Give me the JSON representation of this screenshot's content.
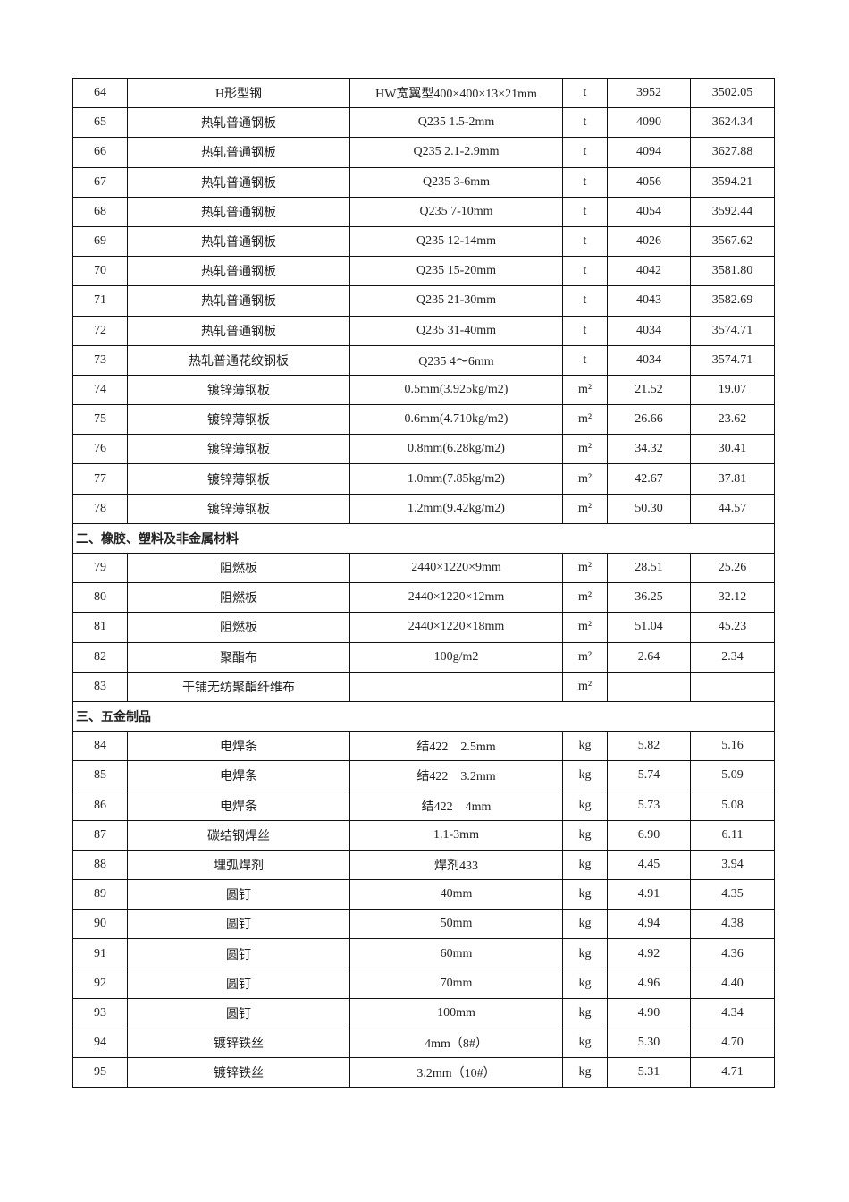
{
  "rows": [
    {
      "no": "64",
      "name": "H形型钢",
      "spec": "HW宽翼型400×400×13×21mm",
      "unit": "t",
      "price_tax": "3952",
      "price_notax": "3502.05"
    },
    {
      "no": "65",
      "name": "热轧普通钢板",
      "spec": "Q235 1.5-2mm",
      "unit": "t",
      "price_tax": "4090",
      "price_notax": "3624.34"
    },
    {
      "no": "66",
      "name": "热轧普通钢板",
      "spec": "Q235 2.1-2.9mm",
      "unit": "t",
      "price_tax": "4094",
      "price_notax": "3627.88"
    },
    {
      "no": "67",
      "name": "热轧普通钢板",
      "spec": "Q235 3-6mm",
      "unit": "t",
      "price_tax": "4056",
      "price_notax": "3594.21"
    },
    {
      "no": "68",
      "name": "热轧普通钢板",
      "spec": "Q235 7-10mm",
      "unit": "t",
      "price_tax": "4054",
      "price_notax": "3592.44"
    },
    {
      "no": "69",
      "name": "热轧普通钢板",
      "spec": "Q235 12-14mm",
      "unit": "t",
      "price_tax": "4026",
      "price_notax": "3567.62"
    },
    {
      "no": "70",
      "name": "热轧普通钢板",
      "spec": "Q235 15-20mm",
      "unit": "t",
      "price_tax": "4042",
      "price_notax": "3581.80"
    },
    {
      "no": "71",
      "name": "热轧普通钢板",
      "spec": "Q235 21-30mm",
      "unit": "t",
      "price_tax": "4043",
      "price_notax": "3582.69"
    },
    {
      "no": "72",
      "name": "热轧普通钢板",
      "spec": "Q235 31-40mm",
      "unit": "t",
      "price_tax": "4034",
      "price_notax": "3574.71"
    },
    {
      "no": "73",
      "name": "热轧普通花纹钢板",
      "spec": "Q235 4～6mm",
      "unit": "t",
      "price_tax": "4034",
      "price_notax": "3574.71"
    },
    {
      "no": "74",
      "name": "镀锌薄钢板",
      "spec": "0.5mm(3.925kg/m2)",
      "unit": "m²",
      "price_tax": "21.52",
      "price_notax": "19.07"
    },
    {
      "no": "75",
      "name": "镀锌薄钢板",
      "spec": "0.6mm(4.710kg/m2)",
      "unit": "m²",
      "price_tax": "26.66",
      "price_notax": "23.62"
    },
    {
      "no": "76",
      "name": "镀锌薄钢板",
      "spec": "0.8mm(6.28kg/m2)",
      "unit": "m²",
      "price_tax": "34.32",
      "price_notax": "30.41"
    },
    {
      "no": "77",
      "name": "镀锌薄钢板",
      "spec": "1.0mm(7.85kg/m2)",
      "unit": "m²",
      "price_tax": "42.67",
      "price_notax": "37.81"
    },
    {
      "no": "78",
      "name": "镀锌薄钢板",
      "spec": "1.2mm(9.42kg/m2)",
      "unit": "m²",
      "price_tax": "50.30",
      "price_notax": "44.57"
    },
    {
      "section": "二、橡胶、塑料及非金属材料"
    },
    {
      "no": "79",
      "name": "阻燃板",
      "spec": "2440×1220×9mm",
      "unit": "m²",
      "price_tax": "28.51",
      "price_notax": "25.26"
    },
    {
      "no": "80",
      "name": "阻燃板",
      "spec": "2440×1220×12mm",
      "unit": "m²",
      "price_tax": "36.25",
      "price_notax": "32.12"
    },
    {
      "no": "81",
      "name": "阻燃板",
      "spec": "2440×1220×18mm",
      "unit": "m²",
      "price_tax": "51.04",
      "price_notax": "45.23"
    },
    {
      "no": "82",
      "name": "聚酯布",
      "spec": "100g/m2",
      "unit": "m²",
      "price_tax": "2.64",
      "price_notax": "2.34"
    },
    {
      "no": "83",
      "name": "干铺无纺聚酯纤维布",
      "spec": "",
      "unit": "m²",
      "price_tax": "",
      "price_notax": ""
    },
    {
      "section": "三、五金制品"
    },
    {
      "no": "84",
      "name": "电焊条",
      "spec": "结422　2.5mm",
      "unit": "kg",
      "price_tax": "5.82",
      "price_notax": "5.16"
    },
    {
      "no": "85",
      "name": "电焊条",
      "spec": "结422　3.2mm",
      "unit": "kg",
      "price_tax": "5.74",
      "price_notax": "5.09"
    },
    {
      "no": "86",
      "name": "电焊条",
      "spec": "结422　4mm",
      "unit": "kg",
      "price_tax": "5.73",
      "price_notax": "5.08"
    },
    {
      "no": "87",
      "name": "碳结钢焊丝",
      "spec": "1.1-3mm",
      "unit": "kg",
      "price_tax": "6.90",
      "price_notax": "6.11"
    },
    {
      "no": "88",
      "name": "埋弧焊剂",
      "spec": "焊剂433",
      "unit": "kg",
      "price_tax": "4.45",
      "price_notax": "3.94"
    },
    {
      "no": "89",
      "name": "圆钉",
      "spec": "40mm",
      "unit": "kg",
      "price_tax": "4.91",
      "price_notax": "4.35"
    },
    {
      "no": "90",
      "name": "圆钉",
      "spec": "50mm",
      "unit": "kg",
      "price_tax": "4.94",
      "price_notax": "4.38"
    },
    {
      "no": "91",
      "name": "圆钉",
      "spec": "60mm",
      "unit": "kg",
      "price_tax": "4.92",
      "price_notax": "4.36"
    },
    {
      "no": "92",
      "name": "圆钉",
      "spec": "70mm",
      "unit": "kg",
      "price_tax": "4.96",
      "price_notax": "4.40"
    },
    {
      "no": "93",
      "name": "圆钉",
      "spec": "100mm",
      "unit": "kg",
      "price_tax": "4.90",
      "price_notax": "4.34"
    },
    {
      "no": "94",
      "name": "镀锌铁丝",
      "spec": "4mm（8#）",
      "unit": "kg",
      "price_tax": "5.30",
      "price_notax": "4.70"
    },
    {
      "no": "95",
      "name": "镀锌铁丝",
      "spec": "3.2mm（10#）",
      "unit": "kg",
      "price_tax": "5.31",
      "price_notax": "4.71"
    }
  ]
}
